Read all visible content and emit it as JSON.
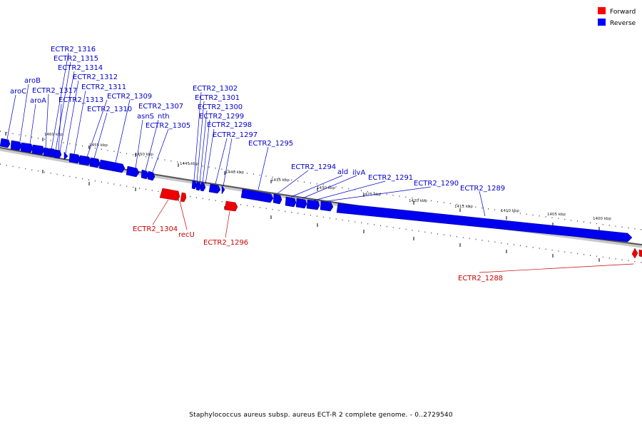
{
  "caption": "Staphylococcus aureus subsp. aureus ECT-R 2 complete genome. - 0..2729540",
  "legend": [
    {
      "label": "Forward",
      "color": "#ff0000"
    },
    {
      "label": "Reverse",
      "color": "#0000ff"
    }
  ],
  "ticks": [
    "1460 kbp",
    "1455 kbp",
    "1450 kbp",
    "1445 kbp",
    "1440 kbp",
    "1435 kbp",
    "1430 kbp",
    "1425 kbp",
    "1420 kbp",
    "1415 kbp",
    "1410 kbp",
    "1405 kbp",
    "1400 kbp"
  ],
  "reverse_labels": [
    "ECTR2_1316",
    "ECTR2_1315",
    "ECTR2_1314",
    "aroB",
    "ECTR2_1312",
    "aroC",
    "ECTR2_1317",
    "ECTR2_1311",
    "aroA",
    "ECTR2_1313",
    "ECTR2_1309",
    "ECTR2_1310",
    "ECTR2_1307",
    "asnS",
    "nth",
    "ECTR2_1305",
    "ECTR2_1302",
    "ECTR2_1301",
    "ECTR2_1300",
    "ECTR2_1299",
    "ECTR2_1298",
    "ECTR2_1297",
    "ECTR2_1295",
    "ECTR2_1294",
    "ald",
    "ilvA",
    "ECTR2_1291",
    "ECTR2_1290",
    "ECTR2_1289"
  ],
  "forward_labels": [
    "ECTR2_1304",
    "recU",
    "ECTR2_1296",
    "ECTR2_1288"
  ]
}
